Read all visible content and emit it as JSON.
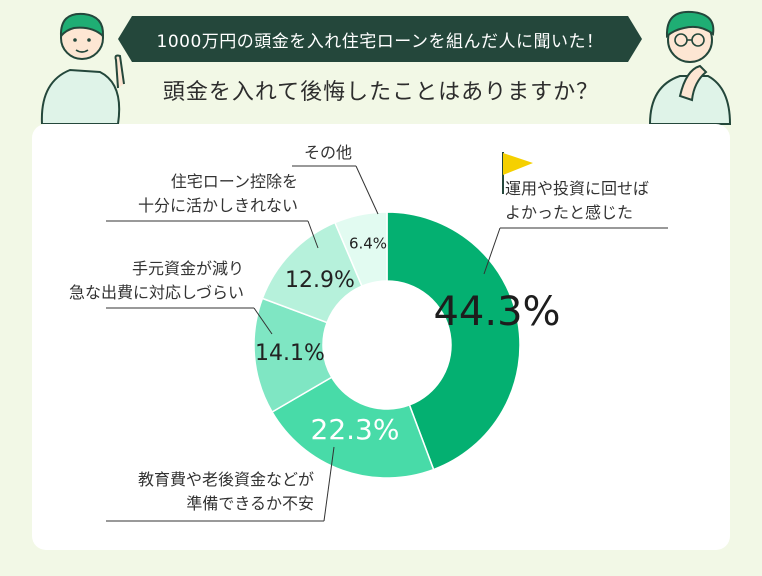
{
  "header": {
    "banner": "1000万円の頭金を入れ住宅ローンを組んだ人に聞いた！",
    "title": "頭金を入れて後悔したことはありますか？"
  },
  "colors": {
    "banner": "#24473b",
    "background": "#f2f8e6",
    "card": "#ffffff"
  },
  "chart_data": {
    "type": "pie",
    "variant": "donut",
    "series": [
      {
        "label_lines": [
          "運用や投資に回せば",
          "よかったと感じた"
        ],
        "value": 44.3,
        "display": "44.3%",
        "color": "#04b071"
      },
      {
        "label_lines": [
          "教育費や老後資金などが",
          "準備できるか不安"
        ],
        "value": 22.3,
        "display": "22.3%",
        "color": "#48dba8"
      },
      {
        "label_lines": [
          "手元資金が減り",
          "急な出費に対応しづらい"
        ],
        "value": 14.1,
        "display": "14.1%",
        "color": "#7fe6c3"
      },
      {
        "label_lines": [
          "住宅ローン控除を",
          "十分に活かしきれない"
        ],
        "value": 12.9,
        "display": "12.9%",
        "color": "#b6f1db"
      },
      {
        "label_lines": [
          "その他"
        ],
        "value": 6.4,
        "display": "6.4%",
        "color": "#e2fbf1"
      }
    ]
  }
}
